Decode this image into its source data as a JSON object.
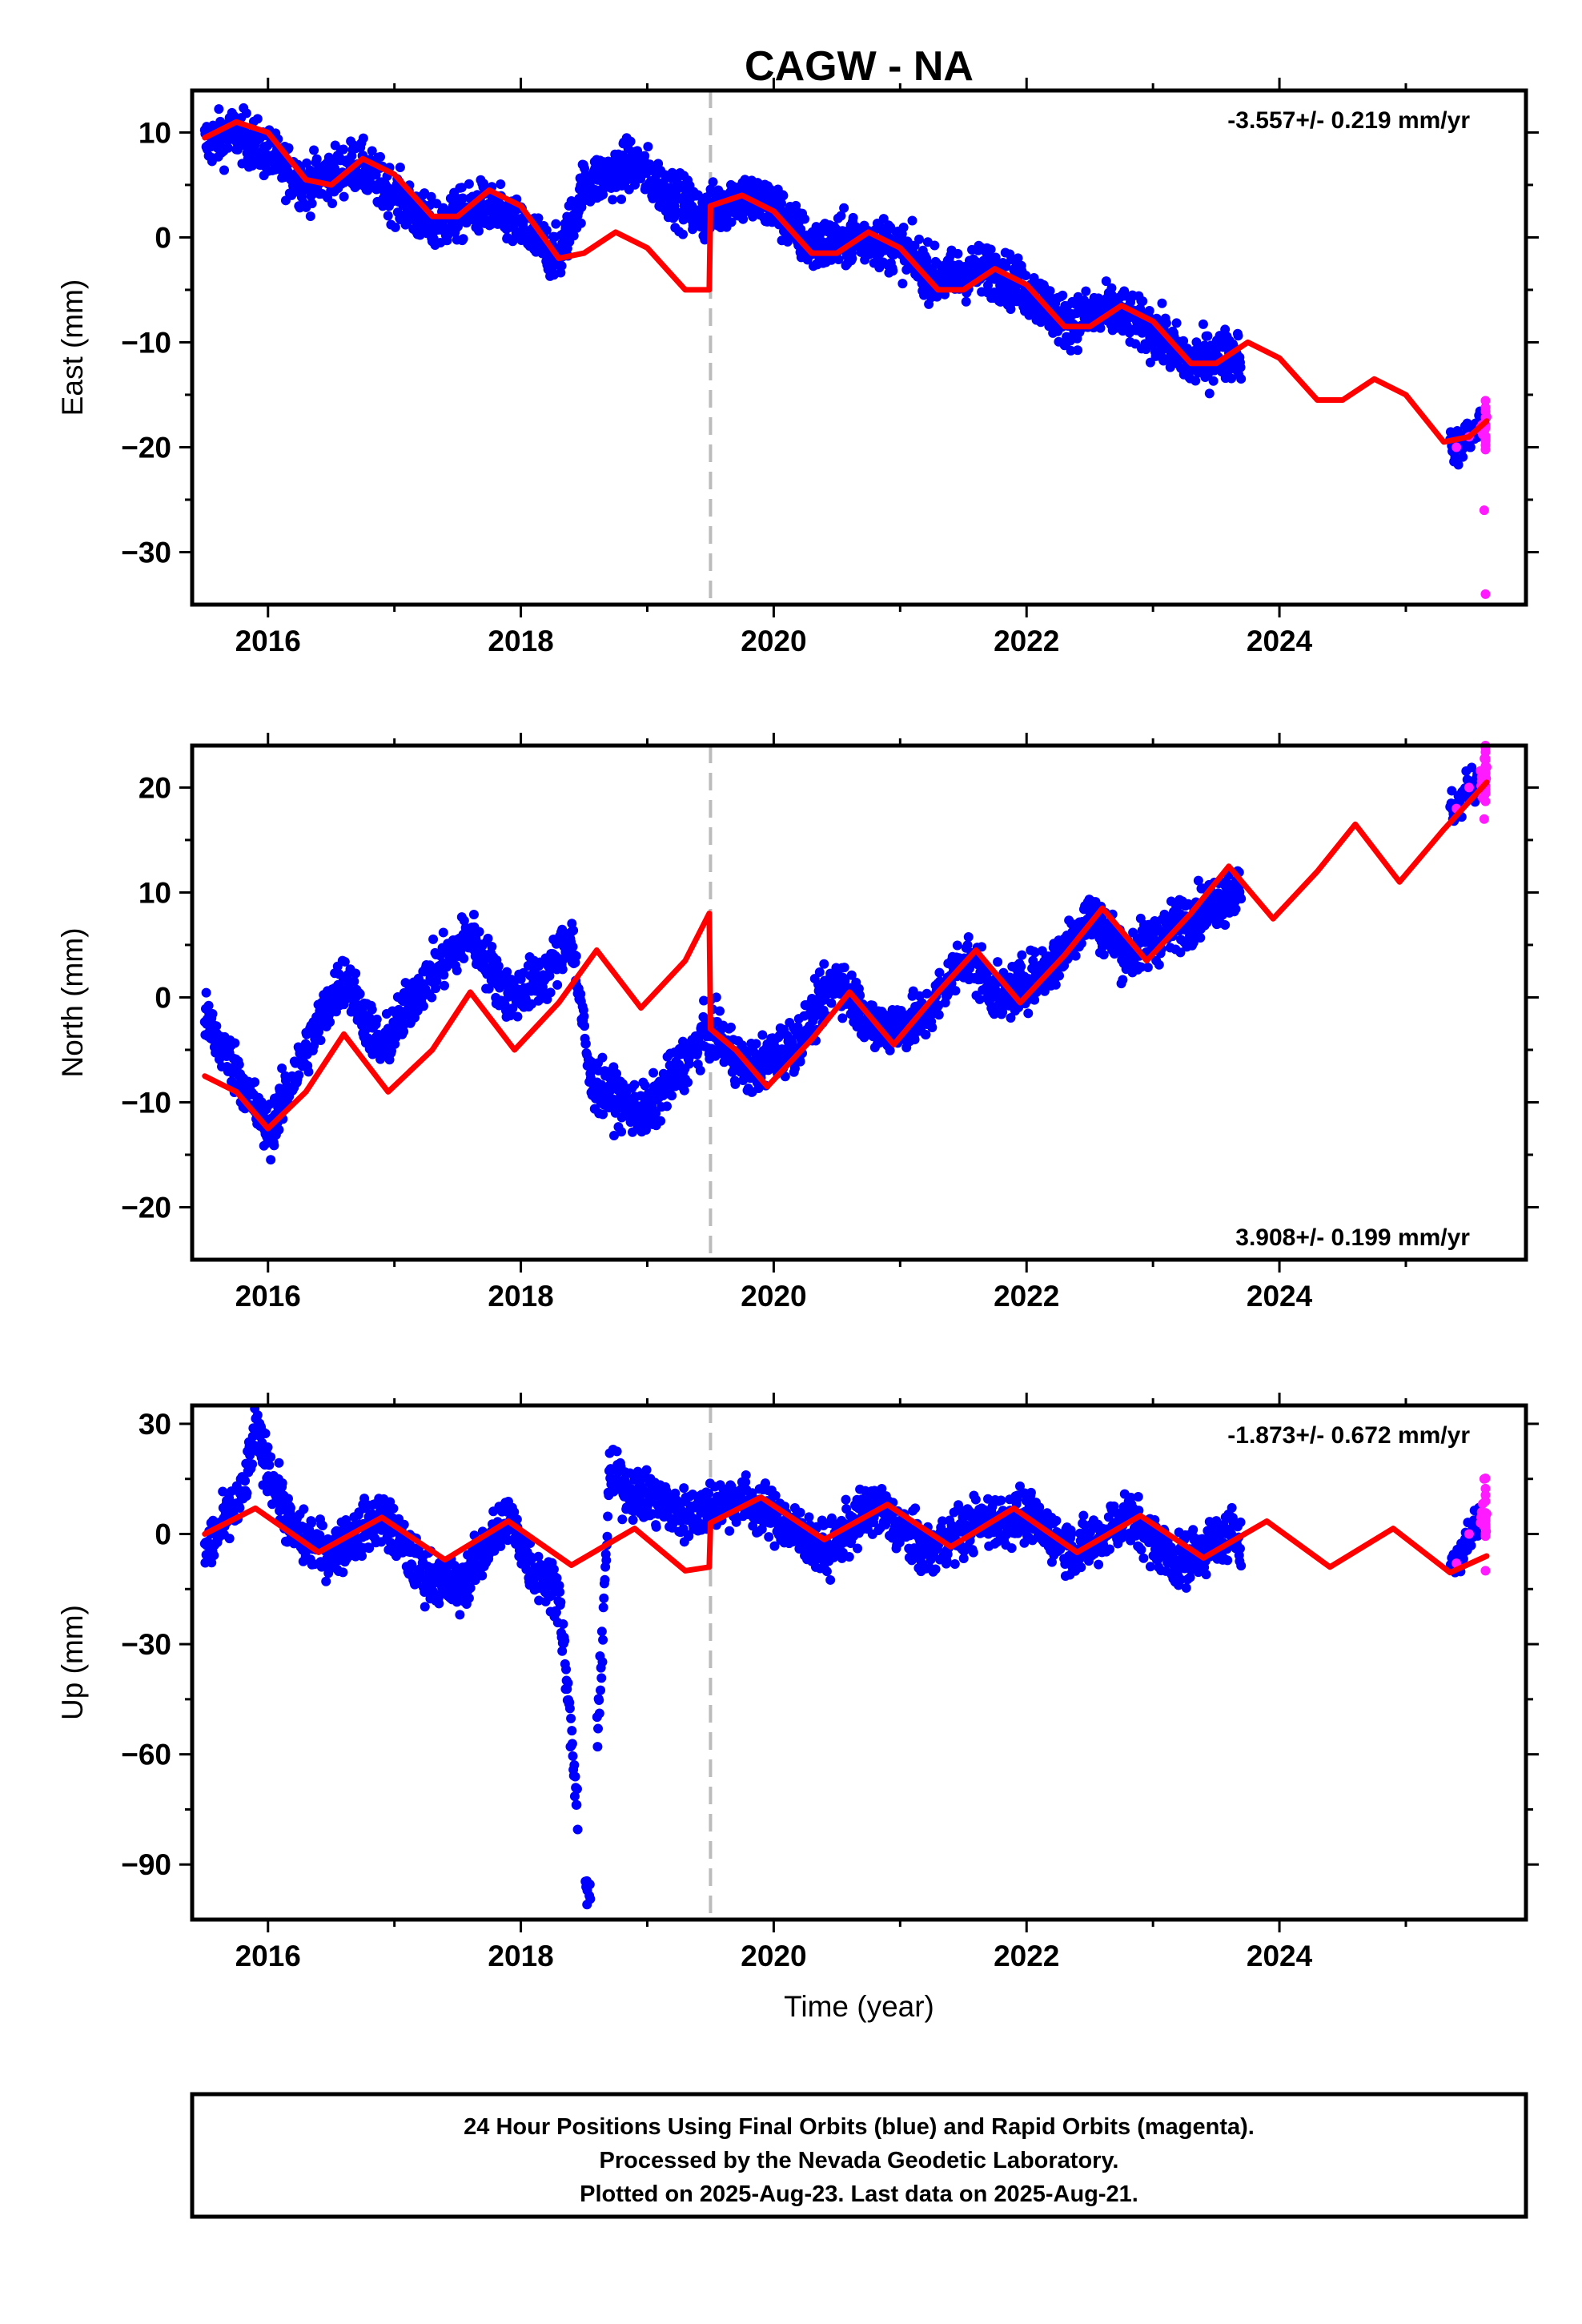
{
  "title": "CAGW - NA",
  "colors": {
    "final": "#0000ff",
    "rapid": "#ff1aff",
    "model": "#ff0000",
    "offset": "#bbbbbb"
  },
  "footer": {
    "line1": "24 Hour Positions Using Final Orbits (blue) and Rapid Orbits (magenta).",
    "line2": "Processed by the Nevada Geodetic Laboratory.",
    "line3": "Plotted on 2025-Aug-23. Last data on 2025-Aug-21."
  },
  "chart_data": [
    {
      "type": "scatter",
      "component": "East",
      "ylabel": "East (mm)",
      "xlabel": "",
      "rate_label": "-3.557+/- 0.219 mm/yr",
      "rate_position": "top-right",
      "xlim": [
        2015.4,
        2025.95
      ],
      "ylim": [
        -35,
        14
      ],
      "xticks": [
        2016,
        2018,
        2020,
        2022,
        2024
      ],
      "yticks": [
        10,
        0,
        -10,
        -20,
        -30
      ],
      "offset_year": 2019.5,
      "final_range": [
        2015.5,
        2023.7
      ],
      "rapid_range": [
        2025.35,
        2025.64
      ],
      "final_points_approx": [
        [
          2015.5,
          9
        ],
        [
          2015.75,
          10
        ],
        [
          2016.0,
          8
        ],
        [
          2016.3,
          5
        ],
        [
          2016.7,
          7
        ],
        [
          2017.0,
          4
        ],
        [
          2017.3,
          1
        ],
        [
          2017.7,
          3
        ],
        [
          2018.0,
          1
        ],
        [
          2018.3,
          -2
        ],
        [
          2018.5,
          5
        ],
        [
          2018.9,
          7
        ],
        [
          2019.2,
          4
        ],
        [
          2019.45,
          2
        ],
        [
          2019.7,
          4
        ],
        [
          2020.0,
          3
        ],
        [
          2020.3,
          -1
        ],
        [
          2020.7,
          0
        ],
        [
          2021.0,
          -1
        ],
        [
          2021.3,
          -4
        ],
        [
          2021.7,
          -3
        ],
        [
          2022.0,
          -5
        ],
        [
          2022.3,
          -8
        ],
        [
          2022.7,
          -7
        ],
        [
          2023.0,
          -9
        ],
        [
          2023.3,
          -12
        ],
        [
          2023.65,
          -11
        ]
      ],
      "rapid_points_approx": [
        [
          2025.4,
          -20
        ],
        [
          2025.5,
          -19
        ],
        [
          2025.6,
          -18
        ],
        [
          2025.62,
          -26
        ],
        [
          2025.63,
          -34
        ]
      ],
      "model_curve_approx": [
        [
          2015.5,
          9.5
        ],
        [
          2015.75,
          11
        ],
        [
          2016.0,
          10
        ],
        [
          2016.3,
          5.5
        ],
        [
          2016.5,
          5
        ],
        [
          2016.75,
          7.5
        ],
        [
          2017.0,
          6
        ],
        [
          2017.3,
          2
        ],
        [
          2017.5,
          2
        ],
        [
          2017.75,
          4.5
        ],
        [
          2018.0,
          3
        ],
        [
          2018.3,
          -2
        ],
        [
          2018.5,
          -1.5
        ],
        [
          2018.75,
          0.5
        ],
        [
          2019.0,
          -1
        ],
        [
          2019.3,
          -5
        ],
        [
          2019.49,
          -5
        ],
        [
          2019.5,
          3
        ],
        [
          2019.75,
          4
        ],
        [
          2020.0,
          2.5
        ],
        [
          2020.3,
          -1.5
        ],
        [
          2020.5,
          -1.5
        ],
        [
          2020.75,
          0.5
        ],
        [
          2021.0,
          -1
        ],
        [
          2021.3,
          -5
        ],
        [
          2021.5,
          -5
        ],
        [
          2021.75,
          -3
        ],
        [
          2022.0,
          -4.5
        ],
        [
          2022.3,
          -8.5
        ],
        [
          2022.5,
          -8.5
        ],
        [
          2022.75,
          -6.5
        ],
        [
          2023.0,
          -8
        ],
        [
          2023.3,
          -12
        ],
        [
          2023.5,
          -12
        ],
        [
          2023.75,
          -10
        ],
        [
          2024.0,
          -11.5
        ],
        [
          2024.3,
          -15.5
        ],
        [
          2024.5,
          -15.5
        ],
        [
          2024.75,
          -13.5
        ],
        [
          2025.0,
          -15
        ],
        [
          2025.3,
          -19.5
        ],
        [
          2025.5,
          -19
        ],
        [
          2025.64,
          -17.5
        ]
      ]
    },
    {
      "type": "scatter",
      "component": "North",
      "ylabel": "North (mm)",
      "xlabel": "",
      "rate_label": "3.908+/- 0.199 mm/yr",
      "rate_position": "bottom-right",
      "xlim": [
        2015.4,
        2025.95
      ],
      "ylim": [
        -25,
        24
      ],
      "xticks": [
        2016,
        2018,
        2020,
        2022,
        2024
      ],
      "yticks": [
        20,
        10,
        0,
        -10,
        -20
      ],
      "offset_year": 2019.5,
      "final_range": [
        2015.5,
        2023.7
      ],
      "rapid_range": [
        2025.35,
        2025.64
      ],
      "final_points_approx": [
        [
          2015.5,
          -2
        ],
        [
          2015.8,
          -8
        ],
        [
          2016.0,
          -13
        ],
        [
          2016.3,
          -5
        ],
        [
          2016.6,
          2
        ],
        [
          2016.9,
          -5
        ],
        [
          2017.2,
          1
        ],
        [
          2017.6,
          6
        ],
        [
          2017.9,
          0
        ],
        [
          2018.2,
          2
        ],
        [
          2018.4,
          6
        ],
        [
          2018.55,
          -8
        ],
        [
          2018.8,
          -10
        ],
        [
          2019.0,
          -11
        ],
        [
          2019.3,
          -6
        ],
        [
          2019.5,
          -3
        ],
        [
          2019.8,
          -7
        ],
        [
          2020.2,
          -4
        ],
        [
          2020.5,
          2
        ],
        [
          2020.8,
          -3
        ],
        [
          2021.2,
          -2
        ],
        [
          2021.5,
          4
        ],
        [
          2021.8,
          0
        ],
        [
          2022.2,
          3
        ],
        [
          2022.5,
          8
        ],
        [
          2022.8,
          4
        ],
        [
          2023.2,
          7
        ],
        [
          2023.6,
          10
        ]
      ],
      "rapid_points_approx": [
        [
          2025.4,
          18
        ],
        [
          2025.5,
          20
        ],
        [
          2025.6,
          21
        ],
        [
          2025.62,
          17
        ],
        [
          2025.63,
          24
        ]
      ],
      "model_curve_approx": [
        [
          2015.5,
          -7.5
        ],
        [
          2015.75,
          -9
        ],
        [
          2016.0,
          -12.5
        ],
        [
          2016.3,
          -9
        ],
        [
          2016.6,
          -3.5
        ],
        [
          2016.95,
          -9
        ],
        [
          2017.3,
          -5
        ],
        [
          2017.6,
          0.5
        ],
        [
          2017.95,
          -5
        ],
        [
          2018.3,
          -0.5
        ],
        [
          2018.6,
          4.5
        ],
        [
          2018.95,
          -1
        ],
        [
          2019.3,
          3.5
        ],
        [
          2019.49,
          8
        ],
        [
          2019.5,
          -3
        ],
        [
          2019.7,
          -5
        ],
        [
          2019.95,
          -8.5
        ],
        [
          2020.3,
          -4
        ],
        [
          2020.6,
          0.5
        ],
        [
          2020.95,
          -4.5
        ],
        [
          2021.3,
          0.5
        ],
        [
          2021.6,
          4.5
        ],
        [
          2021.95,
          -0.5
        ],
        [
          2022.3,
          4
        ],
        [
          2022.6,
          8.5
        ],
        [
          2022.95,
          3.5
        ],
        [
          2023.3,
          8
        ],
        [
          2023.6,
          12.5
        ],
        [
          2023.95,
          7.5
        ],
        [
          2024.3,
          12
        ],
        [
          2024.6,
          16.5
        ],
        [
          2024.95,
          11
        ],
        [
          2025.3,
          16
        ],
        [
          2025.64,
          20.5
        ]
      ]
    },
    {
      "type": "scatter",
      "component": "Up",
      "ylabel": "Up (mm)",
      "xlabel": "Time (year)",
      "rate_label": "-1.873+/- 0.672 mm/yr",
      "rate_position": "top-right",
      "xlim": [
        2015.4,
        2025.95
      ],
      "ylim": [
        -105,
        35
      ],
      "xticks": [
        2016,
        2018,
        2020,
        2022,
        2024
      ],
      "yticks": [
        30,
        0,
        -30,
        -60,
        -90
      ],
      "offset_year": 2019.5,
      "final_range": [
        2015.5,
        2023.7
      ],
      "rapid_range": [
        2025.35,
        2025.64
      ],
      "final_points_approx": [
        [
          2015.5,
          -5
        ],
        [
          2015.8,
          10
        ],
        [
          2015.9,
          28
        ],
        [
          2016.2,
          0
        ],
        [
          2016.5,
          -5
        ],
        [
          2016.9,
          5
        ],
        [
          2017.2,
          -10
        ],
        [
          2017.5,
          -15
        ],
        [
          2017.9,
          5
        ],
        [
          2018.1,
          -10
        ],
        [
          2018.3,
          -15
        ],
        [
          2018.5,
          -97
        ],
        [
          2018.55,
          -100
        ],
        [
          2018.7,
          15
        ],
        [
          2019.0,
          10
        ],
        [
          2019.3,
          5
        ],
        [
          2019.7,
          10
        ],
        [
          2020.0,
          5
        ],
        [
          2020.4,
          -5
        ],
        [
          2020.8,
          8
        ],
        [
          2021.2,
          -5
        ],
        [
          2021.6,
          3
        ],
        [
          2022.0,
          5
        ],
        [
          2022.4,
          -5
        ],
        [
          2022.8,
          5
        ],
        [
          2023.2,
          -8
        ],
        [
          2023.6,
          0
        ]
      ],
      "rapid_points_approx": [
        [
          2025.4,
          -8
        ],
        [
          2025.5,
          0
        ],
        [
          2025.6,
          5
        ],
        [
          2025.62,
          15
        ],
        [
          2025.63,
          -10
        ]
      ],
      "model_curve_approx": [
        [
          2015.5,
          0
        ],
        [
          2015.9,
          7
        ],
        [
          2016.4,
          -5
        ],
        [
          2016.9,
          4.5
        ],
        [
          2017.4,
          -7
        ],
        [
          2017.9,
          3.5
        ],
        [
          2018.4,
          -8.5
        ],
        [
          2018.9,
          1.5
        ],
        [
          2019.3,
          -10
        ],
        [
          2019.49,
          -9
        ],
        [
          2019.5,
          3
        ],
        [
          2019.9,
          10
        ],
        [
          2020.4,
          -1.5
        ],
        [
          2020.9,
          8
        ],
        [
          2021.4,
          -3.5
        ],
        [
          2021.9,
          7
        ],
        [
          2022.4,
          -5
        ],
        [
          2022.9,
          5
        ],
        [
          2023.4,
          -6.5
        ],
        [
          2023.9,
          3.5
        ],
        [
          2024.4,
          -9
        ],
        [
          2024.9,
          1.5
        ],
        [
          2025.35,
          -10.5
        ],
        [
          2025.64,
          -6
        ]
      ]
    }
  ]
}
